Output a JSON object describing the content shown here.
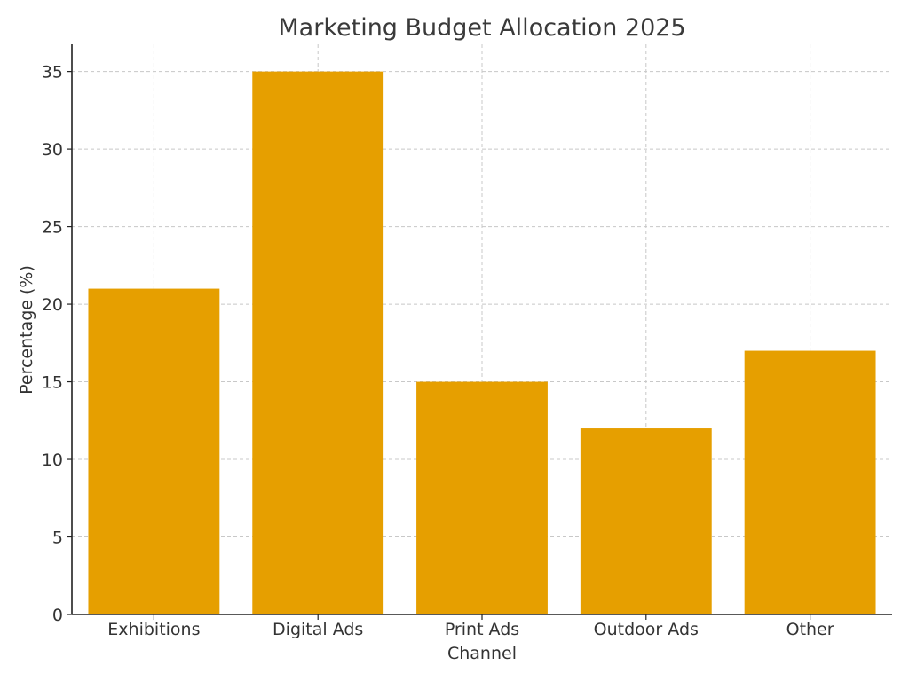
{
  "chart_data": {
    "type": "bar",
    "title": "Marketing Budget Allocation 2025",
    "xlabel": "Channel",
    "ylabel": "Percentage (%)",
    "categories": [
      "Exhibitions",
      "Digital Ads",
      "Print Ads",
      "Outdoor Ads",
      "Other"
    ],
    "values": [
      21,
      35,
      15,
      12,
      17
    ],
    "ylim": [
      0,
      36.75
    ],
    "yticks": [
      0,
      5,
      10,
      15,
      20,
      25,
      30,
      35
    ],
    "grid": true,
    "bar_color": "#E69F00"
  }
}
